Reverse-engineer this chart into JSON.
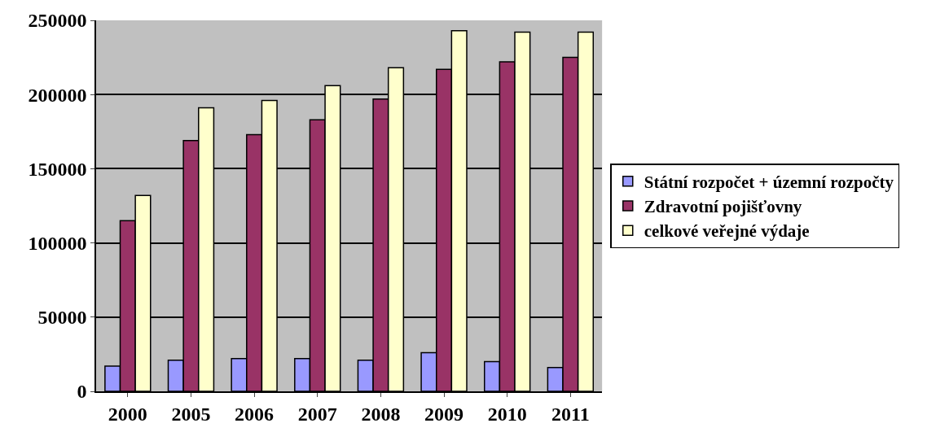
{
  "chart_data": {
    "type": "bar",
    "categories": [
      "2000",
      "2005",
      "2006",
      "2007",
      "2008",
      "2009",
      "2010",
      "2011"
    ],
    "series": [
      {
        "name": "Státní rozpočet + územní rozpočty",
        "color": "#9999ff",
        "values": [
          17000,
          21000,
          22000,
          22000,
          21000,
          26000,
          20000,
          16000
        ]
      },
      {
        "name": "Zdravotní pojišťovny",
        "color": "#993366",
        "values": [
          115000,
          169000,
          173000,
          183000,
          197000,
          217000,
          222000,
          225000
        ]
      },
      {
        "name": "celkové veřejné výdaje",
        "color": "#ffffcc",
        "values": [
          132000,
          191000,
          196000,
          206000,
          218000,
          243000,
          242000,
          242000
        ]
      }
    ],
    "ylim": [
      0,
      250000
    ],
    "yticks": [
      0,
      50000,
      100000,
      150000,
      200000,
      250000
    ],
    "grid": "y",
    "legend": "right"
  }
}
